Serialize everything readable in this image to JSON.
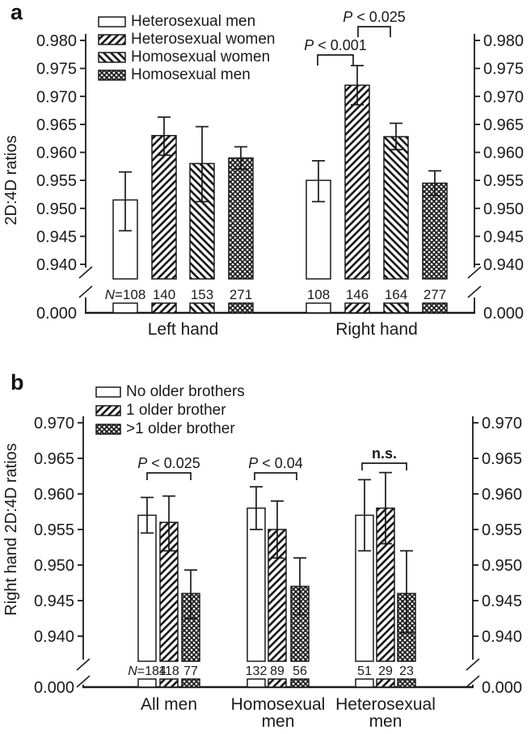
{
  "background": "#ffffff",
  "ink_color": "#1a1a1a",
  "panels": [
    {
      "letter": "a"
    },
    {
      "letter": "b"
    }
  ],
  "chart_data": [
    {
      "type": "bar",
      "panel": "a",
      "ylabel": "2D:4D ratios",
      "ylim": [
        0.94,
        0.98
      ],
      "yticks": [
        "0.980",
        "0.975",
        "0.970",
        "0.965",
        "0.960",
        "0.955",
        "0.950",
        "0.945",
        "0.940"
      ],
      "axis_break_label": "0.000",
      "grid": false,
      "dual_axis": true,
      "legend_position": "top-left",
      "legend": [
        {
          "label": "Heterosexual men",
          "pattern": "open"
        },
        {
          "label": "Heterosexual women",
          "pattern": "diag-up"
        },
        {
          "label": "Homosexual women",
          "pattern": "diag-down"
        },
        {
          "label": "Homosexual men",
          "pattern": "cross"
        }
      ],
      "groups": [
        {
          "label": [
            "Left hand"
          ],
          "bars": [
            {
              "series": "Heterosexual men",
              "pattern": "open",
              "value": 0.9515,
              "err_lo": 0.946,
              "err_hi": 0.9565,
              "n_label": "N=108"
            },
            {
              "series": "Heterosexual women",
              "pattern": "diag-up",
              "value": 0.963,
              "err_lo": 0.9595,
              "err_hi": 0.9663,
              "n_label": "140"
            },
            {
              "series": "Homosexual women",
              "pattern": "diag-down",
              "value": 0.958,
              "err_lo": 0.9512,
              "err_hi": 0.9646,
              "n_label": "153"
            },
            {
              "series": "Homosexual men",
              "pattern": "cross",
              "value": 0.959,
              "err_lo": 0.957,
              "err_hi": 0.961,
              "n_label": "271"
            }
          ]
        },
        {
          "label": [
            "Right hand"
          ],
          "bars": [
            {
              "series": "Heterosexual men",
              "pattern": "open",
              "value": 0.955,
              "err_lo": 0.9512,
              "err_hi": 0.9585,
              "n_label": "108"
            },
            {
              "series": "Heterosexual women",
              "pattern": "diag-up",
              "value": 0.972,
              "err_lo": 0.9685,
              "err_hi": 0.9755,
              "n_label": "146"
            },
            {
              "series": "Homosexual women",
              "pattern": "diag-down",
              "value": 0.9628,
              "err_lo": 0.9605,
              "err_hi": 0.9652,
              "n_label": "164"
            },
            {
              "series": "Homosexual men",
              "pattern": "cross",
              "value": 0.9545,
              "err_lo": 0.9523,
              "err_hi": 0.9567,
              "n_label": "277"
            }
          ]
        }
      ],
      "annotations": [
        {
          "text": "P < 0.001",
          "group": 1,
          "from_bar": 0,
          "to_bar": 1
        },
        {
          "text": "P < 0.025",
          "group": 1,
          "from_bar": 1,
          "to_bar": 2
        }
      ]
    },
    {
      "type": "bar",
      "panel": "b",
      "ylabel": "Right hand 2D:4D ratios",
      "ylim": [
        0.94,
        0.97
      ],
      "yticks": [
        "0.970",
        "0.965",
        "0.960",
        "0.955",
        "0.950",
        "0.945",
        "0.940"
      ],
      "axis_break_label": "0.000",
      "grid": false,
      "dual_axis": true,
      "legend_position": "top-left",
      "legend": [
        {
          "label": "No older brothers",
          "pattern": "open"
        },
        {
          "label": "1 older brother",
          "pattern": "diag-up"
        },
        {
          "label": ">1 older brother",
          "pattern": "cross"
        }
      ],
      "groups": [
        {
          "label": [
            "All men"
          ],
          "bars": [
            {
              "series": "No older brothers",
              "pattern": "open",
              "value": 0.957,
              "err_lo": 0.9545,
              "err_hi": 0.9595,
              "n_label": "N=184"
            },
            {
              "series": "1 older brother",
              "pattern": "diag-up",
              "value": 0.956,
              "err_lo": 0.952,
              "err_hi": 0.9597,
              "n_label": "118"
            },
            {
              "series": ">1 older brother",
              "pattern": "cross",
              "value": 0.946,
              "err_lo": 0.9425,
              "err_hi": 0.9493,
              "n_label": "77"
            }
          ]
        },
        {
          "label": [
            "Homosexual",
            "men"
          ],
          "bars": [
            {
              "series": "No older brothers",
              "pattern": "open",
              "value": 0.958,
              "err_lo": 0.955,
              "err_hi": 0.961,
              "n_label": "132"
            },
            {
              "series": "1 older brother",
              "pattern": "diag-up",
              "value": 0.955,
              "err_lo": 0.951,
              "err_hi": 0.959,
              "n_label": "89"
            },
            {
              "series": ">1 older brother",
              "pattern": "cross",
              "value": 0.947,
              "err_lo": 0.943,
              "err_hi": 0.951,
              "n_label": "56"
            }
          ]
        },
        {
          "label": [
            "Heterosexual",
            "men"
          ],
          "bars": [
            {
              "series": "No older brothers",
              "pattern": "open",
              "value": 0.957,
              "err_lo": 0.952,
              "err_hi": 0.962,
              "n_label": "51"
            },
            {
              "series": "1 older brother",
              "pattern": "diag-up",
              "value": 0.958,
              "err_lo": 0.953,
              "err_hi": 0.963,
              "n_label": "29"
            },
            {
              "series": ">1 older brother",
              "pattern": "cross",
              "value": 0.946,
              "err_lo": 0.9405,
              "err_hi": 0.952,
              "n_label": "23"
            }
          ]
        }
      ],
      "annotations": [
        {
          "text": "P < 0.025",
          "group": 0,
          "from_bar": 0,
          "to_bar": 2
        },
        {
          "text": "P < 0.04",
          "group": 1,
          "from_bar": 0,
          "to_bar": 2
        },
        {
          "text": "n.s.",
          "group": 2,
          "from_bar": 0,
          "to_bar": 2
        }
      ]
    }
  ]
}
